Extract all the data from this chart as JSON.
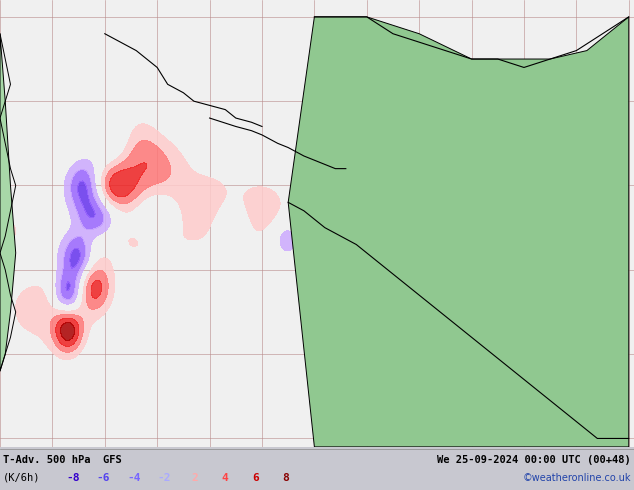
{
  "title_left": "T-Adv. 500 hPa  GFS",
  "title_right": "We 25-09-2024 00:00 UTC (00+48)",
  "subtitle_left": "(K/6h)",
  "credit": "©weatheronline.co.uk",
  "ocean_color": "#f0f0f0",
  "land_color_main": "#90c890",
  "land_color_secondary": "#a8d8a8",
  "contour_color": "#000000",
  "grid_color": "#c0a0a0",
  "figsize": [
    6.34,
    4.9
  ],
  "dpi": 100,
  "contour_levels": [
    496,
    504,
    512,
    520,
    528,
    536,
    544,
    552,
    560,
    568,
    576,
    584,
    588
  ],
  "neg_colors": [
    "#cc00cc",
    "#6600ff",
    "#3300cc",
    "#6688ff",
    "#aaccff"
  ],
  "pos_colors": [
    "#ffcccc",
    "#ff8888",
    "#ff3333",
    "#cc0000",
    "#880000"
  ],
  "neg_labels": [
    "-8",
    "-6",
    "-4",
    "-2"
  ],
  "pos_labels": [
    "2",
    "4",
    "6",
    "8"
  ],
  "neg_label_colors": [
    "#3300cc",
    "#5544ee",
    "#7766ff",
    "#aaaaff"
  ],
  "pos_label_colors": [
    "#ffaaaa",
    "#ff4444",
    "#cc0000",
    "#880000"
  ]
}
